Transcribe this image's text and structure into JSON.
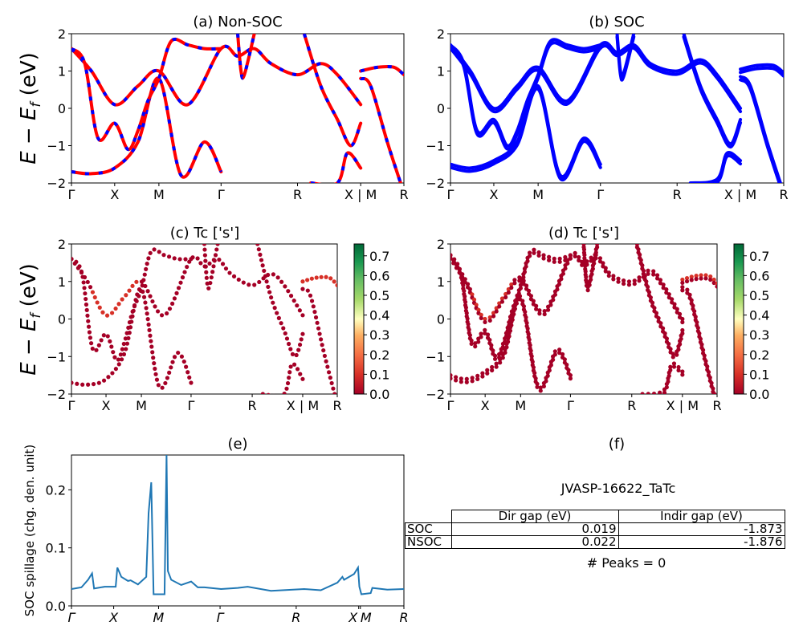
{
  "figure": {
    "material": "JVASP-16622_TaTc",
    "peaks_text": "# Peaks = 0"
  },
  "colors": {
    "nonsoc_line": "#ff0000",
    "nonsoc_dash": "#0000ff",
    "soc_line": "#0000ff",
    "spillage_line": "#1f77b4",
    "colormap": "RdYlGn"
  },
  "chart_data": [
    {
      "id": "a",
      "type": "line",
      "title": "(a) Non-SOC",
      "ylabel": "E − E_f (eV)",
      "ylim": [
        -2,
        2
      ],
      "yticks": [
        "2",
        "1",
        "0",
        "−1",
        "−2"
      ],
      "ytick_values": [
        2,
        1,
        0,
        -1,
        -2
      ],
      "xticks": [
        "Γ",
        "X",
        "M",
        "Γ",
        "R",
        "X | M",
        "R"
      ],
      "xtick_positions": [
        0,
        0.13,
        0.263,
        0.45,
        0.68,
        0.87,
        1.0
      ],
      "x_units": "k-path fraction",
      "style": "red solid with blue dashes",
      "series": [
        {
          "name": "band1",
          "x": [
            0,
            0.06,
            0.13,
            0.2,
            0.263,
            0.33,
            0.4,
            0.45
          ],
          "y": [
            -1.7,
            -1.75,
            -1.6,
            -0.9,
            0.8,
            -1.8,
            -0.9,
            -1.7
          ]
        },
        {
          "name": "band2",
          "x": [
            0,
            0.06,
            0.13,
            0.2,
            0.263,
            0.35,
            0.45,
            0.5,
            0.55,
            0.6,
            0.68,
            0.75,
            0.8,
            0.87
          ],
          "y": [
            1.6,
            1.0,
            0.1,
            0.6,
            1.0,
            0.1,
            1.6,
            1.4,
            1.6,
            1.2,
            0.9,
            1.2,
            0.9,
            0.1
          ]
        },
        {
          "name": "band3",
          "x": [
            0,
            0.04,
            0.08,
            0.13,
            0.17,
            0.2,
            0.23,
            0.263,
            0.3,
            0.35,
            0.4,
            0.45
          ],
          "y": [
            1.6,
            1.2,
            -0.8,
            -0.4,
            -1.1,
            -0.6,
            0.2,
            0.8,
            1.8,
            1.7,
            1.6,
            1.6
          ]
        },
        {
          "name": "band4",
          "x": [
            0.87,
            0.92,
            0.97,
            1.0
          ],
          "y": [
            1.0,
            1.1,
            1.1,
            0.9
          ]
        },
        {
          "name": "band5",
          "x": [
            0.87,
            0.9,
            0.95,
            0.99
          ],
          "y": [
            0.8,
            0.6,
            -0.9,
            -2.0
          ]
        },
        {
          "name": "band6",
          "x": [
            0.7,
            0.75,
            0.8,
            0.84,
            0.87
          ],
          "y": [
            2.0,
            0.6,
            -0.3,
            -1.0,
            -0.4
          ]
        },
        {
          "name": "band7",
          "x": [
            0.72,
            0.8,
            0.83,
            0.87
          ],
          "y": [
            -2.0,
            -2.0,
            -1.2,
            -1.6
          ]
        },
        {
          "name": "band8",
          "x": [
            0.5,
            0.51,
            0.52,
            0.55
          ],
          "y": [
            2.0,
            1.0,
            0.9,
            2.0
          ]
        }
      ]
    },
    {
      "id": "b",
      "type": "line",
      "title": "(b) SOC",
      "ylim": [
        -2,
        2
      ],
      "yticks": [
        "2",
        "1",
        "0",
        "−1",
        "−2"
      ],
      "ytick_values": [
        2,
        1,
        0,
        -1,
        -2
      ],
      "xticks": [
        "Γ",
        "X",
        "M",
        "Γ",
        "R",
        "X | M",
        "R"
      ],
      "xtick_positions": [
        0,
        0.13,
        0.263,
        0.45,
        0.68,
        0.87,
        1.0
      ],
      "x_units": "k-path fraction",
      "style": "blue solid",
      "series": [
        {
          "name": "band1",
          "x": [
            0,
            0.06,
            0.13,
            0.2,
            0.263,
            0.33,
            0.4,
            0.45
          ],
          "y": [
            -1.5,
            -1.6,
            -1.4,
            -0.9,
            0.6,
            -1.8,
            -0.8,
            -1.5
          ]
        },
        {
          "name": "band2",
          "x": [
            0,
            0.06,
            0.13,
            0.2,
            0.263,
            0.35,
            0.45,
            0.5,
            0.55,
            0.6,
            0.68,
            0.75,
            0.8,
            0.87
          ],
          "y": [
            1.7,
            1.0,
            0.0,
            0.6,
            1.1,
            0.2,
            1.7,
            1.5,
            1.7,
            1.2,
            1.0,
            1.3,
            0.9,
            0.0
          ]
        },
        {
          "name": "band3",
          "x": [
            0,
            0.04,
            0.08,
            0.13,
            0.17,
            0.2,
            0.23,
            0.263,
            0.3,
            0.35,
            0.4,
            0.45
          ],
          "y": [
            1.7,
            1.2,
            -0.6,
            -0.3,
            -1.0,
            -0.6,
            0.2,
            0.9,
            1.8,
            1.7,
            1.6,
            1.7
          ]
        },
        {
          "name": "band4",
          "x": [
            0.87,
            0.92,
            0.97,
            1.0
          ],
          "y": [
            1.05,
            1.15,
            1.15,
            0.95
          ]
        },
        {
          "name": "band5",
          "x": [
            0.87,
            0.9,
            0.95,
            0.99
          ],
          "y": [
            0.85,
            0.6,
            -0.9,
            -2.0
          ]
        },
        {
          "name": "band6",
          "x": [
            0.7,
            0.75,
            0.8,
            0.84,
            0.87
          ],
          "y": [
            2.0,
            0.6,
            -0.3,
            -0.95,
            -0.3
          ]
        },
        {
          "name": "band7",
          "x": [
            0.72,
            0.8,
            0.83,
            0.87
          ],
          "y": [
            -2.0,
            -1.9,
            -1.2,
            -1.4
          ]
        },
        {
          "name": "band8",
          "x": [
            0.5,
            0.51,
            0.52,
            0.55
          ],
          "y": [
            2.0,
            1.0,
            0.95,
            2.0
          ]
        }
      ]
    },
    {
      "id": "c",
      "type": "scatter",
      "title": "(c)  Tc ['s']",
      "ylabel": "E − E_f (eV)",
      "ylim": [
        -2,
        2
      ],
      "yticks": [
        "2",
        "1",
        "0",
        "−1",
        "−2"
      ],
      "ytick_values": [
        2,
        1,
        0,
        -1,
        -2
      ],
      "xticks": [
        "Γ",
        "X",
        "M",
        "Γ",
        "R",
        "X | M",
        "R"
      ],
      "xtick_positions": [
        0,
        0.13,
        0.263,
        0.45,
        0.68,
        0.87,
        1.0
      ],
      "colorbar": {
        "label_ticks": [
          "0.7",
          "0.6",
          "0.5",
          "0.4",
          "0.3",
          "0.2",
          "0.1",
          "0.0"
        ],
        "tick_values": [
          0.7,
          0.6,
          0.5,
          0.4,
          0.3,
          0.2,
          0.1,
          0.0
        ],
        "range": [
          0,
          0.76
        ]
      },
      "series_ref": "a"
    },
    {
      "id": "d",
      "type": "scatter",
      "title": "(d) Tc ['s']",
      "ylim": [
        -2,
        2
      ],
      "yticks": [
        "2",
        "1",
        "0",
        "−1",
        "−2"
      ],
      "ytick_values": [
        2,
        1,
        0,
        -1,
        -2
      ],
      "xticks": [
        "Γ",
        "X",
        "M",
        "Γ",
        "R",
        "X | M",
        "R"
      ],
      "xtick_positions": [
        0,
        0.13,
        0.263,
        0.45,
        0.68,
        0.87,
        1.0
      ],
      "colorbar": {
        "label_ticks": [
          "0.7",
          "0.6",
          "0.5",
          "0.4",
          "0.3",
          "0.2",
          "0.1",
          "0.0"
        ],
        "tick_values": [
          0.7,
          0.6,
          0.5,
          0.4,
          0.3,
          0.2,
          0.1,
          0.0
        ],
        "range": [
          0,
          0.76
        ]
      },
      "series_ref": "b"
    },
    {
      "id": "e",
      "type": "line",
      "title": "(e)",
      "ylabel": "SOC spillage (chg. den. unit)",
      "ylim": [
        0,
        0.26
      ],
      "yticks": [
        "0.2",
        "0.1",
        "0.0"
      ],
      "ytick_values": [
        0.2,
        0.1,
        0.0
      ],
      "xticks": [
        "Γ",
        "X",
        "M",
        "Γ",
        "R",
        "X",
        "M",
        "R"
      ],
      "xtick_positions": [
        0,
        0.127,
        0.262,
        0.447,
        0.676,
        0.864,
        0.869,
        1.0
      ],
      "x": [
        0,
        0.03,
        0.05,
        0.062,
        0.068,
        0.1,
        0.133,
        0.138,
        0.15,
        0.17,
        0.178,
        0.2,
        0.225,
        0.232,
        0.24,
        0.247,
        0.28,
        0.286,
        0.29,
        0.3,
        0.33,
        0.36,
        0.38,
        0.4,
        0.45,
        0.5,
        0.53,
        0.6,
        0.7,
        0.75,
        0.8,
        0.815,
        0.82,
        0.85,
        0.862,
        0.866,
        0.872,
        0.9,
        0.905,
        0.95,
        1.0
      ],
      "y": [
        0.029,
        0.032,
        0.045,
        0.056,
        0.03,
        0.033,
        0.033,
        0.066,
        0.05,
        0.043,
        0.044,
        0.037,
        0.05,
        0.16,
        0.213,
        0.02,
        0.02,
        0.26,
        0.06,
        0.045,
        0.036,
        0.042,
        0.032,
        0.032,
        0.029,
        0.031,
        0.033,
        0.026,
        0.029,
        0.027,
        0.04,
        0.05,
        0.045,
        0.055,
        0.066,
        0.033,
        0.02,
        0.022,
        0.031,
        0.028,
        0.029
      ]
    }
  ],
  "table": {
    "columns": [
      "",
      "Dir gap (eV)",
      "Indir gap (eV)"
    ],
    "rows": [
      {
        "label": "SOC",
        "dir_gap": "0.019",
        "indir_gap": "-1.873"
      },
      {
        "label": "NSOC",
        "dir_gap": "0.022",
        "indir_gap": "-1.876"
      }
    ],
    "title": "(f)"
  }
}
